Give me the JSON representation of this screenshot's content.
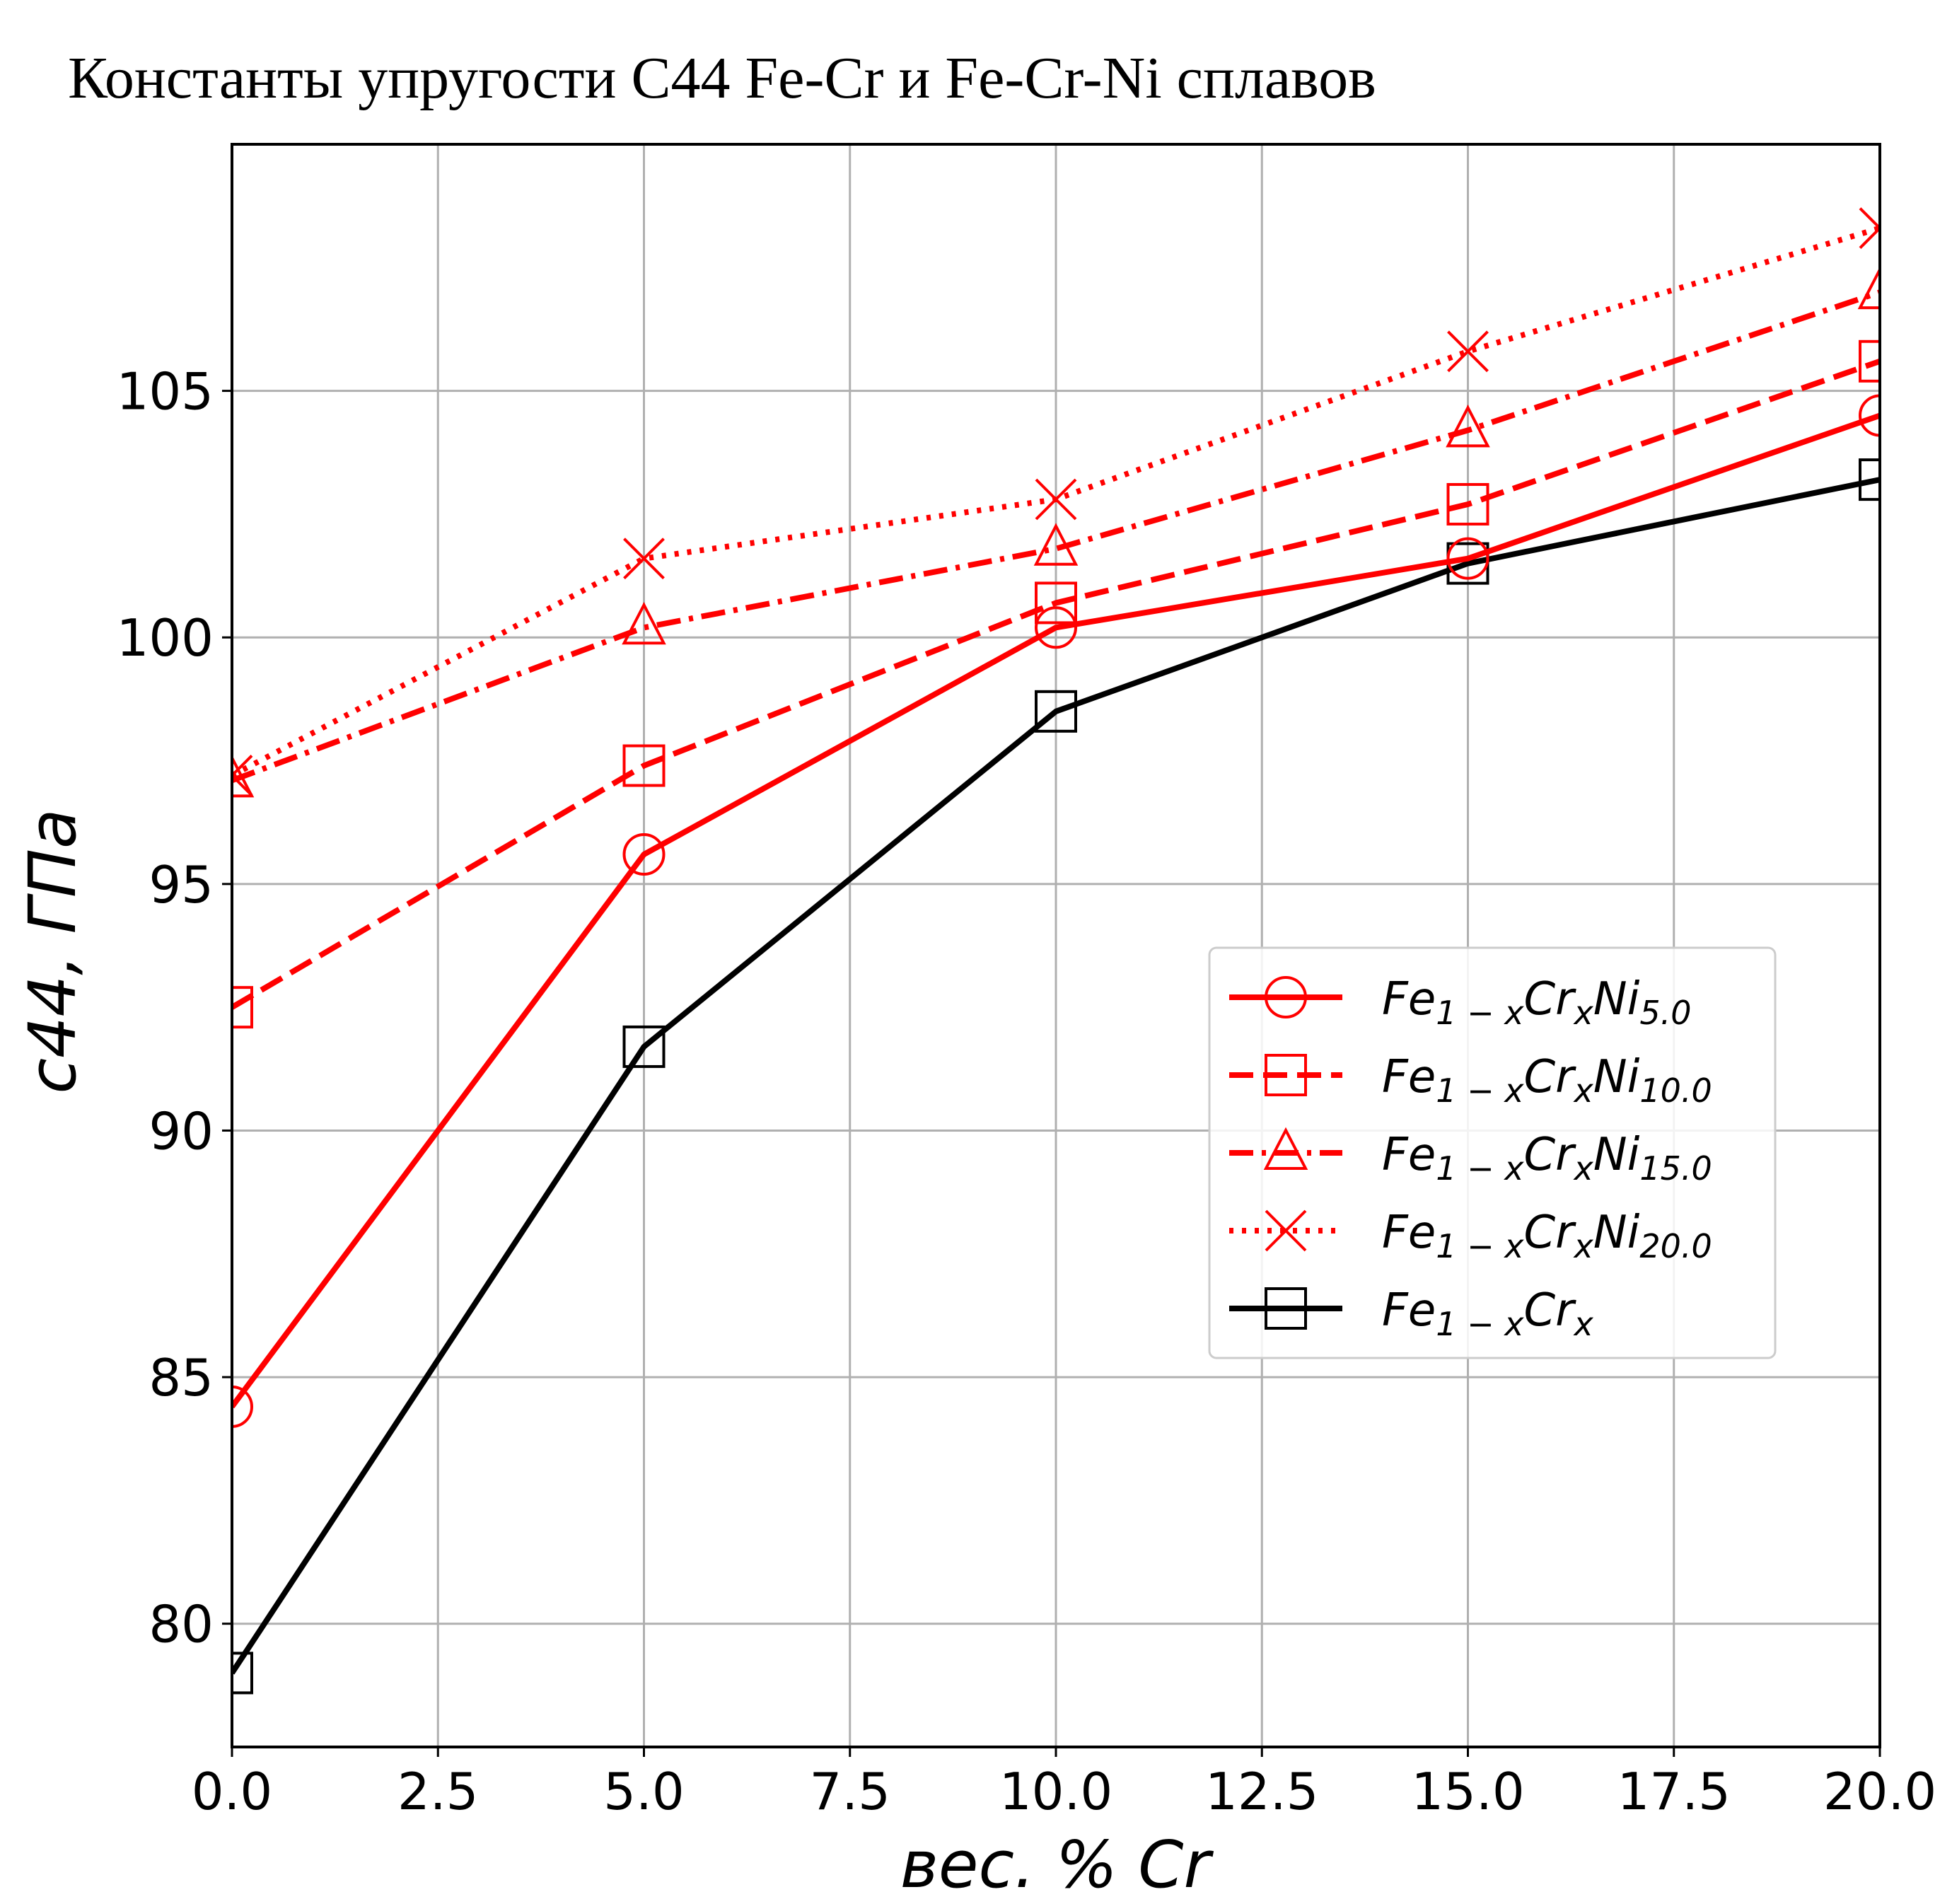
{
  "chart_data": {
    "type": "line",
    "title": "Константы упругости C44 Fe-Cr и Fe-Cr-Ni сплавов",
    "xlabel": "вес. % Cr",
    "ylabel": "c44, ГПа",
    "xlim": [
      0,
      20
    ],
    "ylim": [
      77.5,
      110.0
    ],
    "xticks": [
      "0.0",
      "2.5",
      "5.0",
      "7.5",
      "10.0",
      "12.5",
      "15.0",
      "17.5",
      "20.0"
    ],
    "yticks": [
      "80",
      "85",
      "90",
      "95",
      "100",
      "105"
    ],
    "grid": true,
    "legend_position": "center-right",
    "x": [
      0,
      5,
      10,
      15,
      20
    ],
    "series": [
      {
        "name": "Fe1-xCrxNi5.0",
        "name_parts": {
          "base": "Fe",
          "sub1": "1 − x",
          "el2": "Cr",
          "sub2": "x",
          "el3": "Ni",
          "sub3": "5.0"
        },
        "values": [
          84.4,
          95.6,
          100.2,
          101.6,
          104.5
        ],
        "color": "#ff0000",
        "marker": "circle",
        "linestyle": "solid"
      },
      {
        "name": "Fe1-xCrxNi10.0",
        "name_parts": {
          "base": "Fe",
          "sub1": "1 − x",
          "el2": "Cr",
          "sub2": "x",
          "el3": "Ni",
          "sub3": "10.0"
        },
        "values": [
          92.5,
          97.4,
          100.7,
          102.7,
          105.6
        ],
        "color": "#ff0000",
        "marker": "square",
        "linestyle": "dashed"
      },
      {
        "name": "Fe1-xCrxNi15.0",
        "name_parts": {
          "base": "Fe",
          "sub1": "1 − x",
          "el2": "Cr",
          "sub2": "x",
          "el3": "Ni",
          "sub3": "15.0"
        },
        "values": [
          97.1,
          100.2,
          101.8,
          104.2,
          107.0
        ],
        "color": "#ff0000",
        "marker": "triangle",
        "linestyle": "dashdot"
      },
      {
        "name": "Fe1-xCrxNi20.0",
        "name_parts": {
          "base": "Fe",
          "sub1": "1 − x",
          "el2": "Cr",
          "sub2": "x",
          "el3": "Ni",
          "sub3": "20.0"
        },
        "values": [
          97.2,
          101.6,
          102.8,
          105.8,
          108.3
        ],
        "color": "#ff0000",
        "marker": "x",
        "linestyle": "dotted"
      },
      {
        "name": "Fe1-xCrx",
        "name_parts": {
          "base": "Fe",
          "sub1": "1 − x",
          "el2": "Cr",
          "sub2": "x",
          "el3": "",
          "sub3": ""
        },
        "values": [
          79.0,
          91.7,
          98.5,
          101.5,
          103.2
        ],
        "color": "#000000",
        "marker": "square",
        "linestyle": "solid"
      }
    ]
  }
}
